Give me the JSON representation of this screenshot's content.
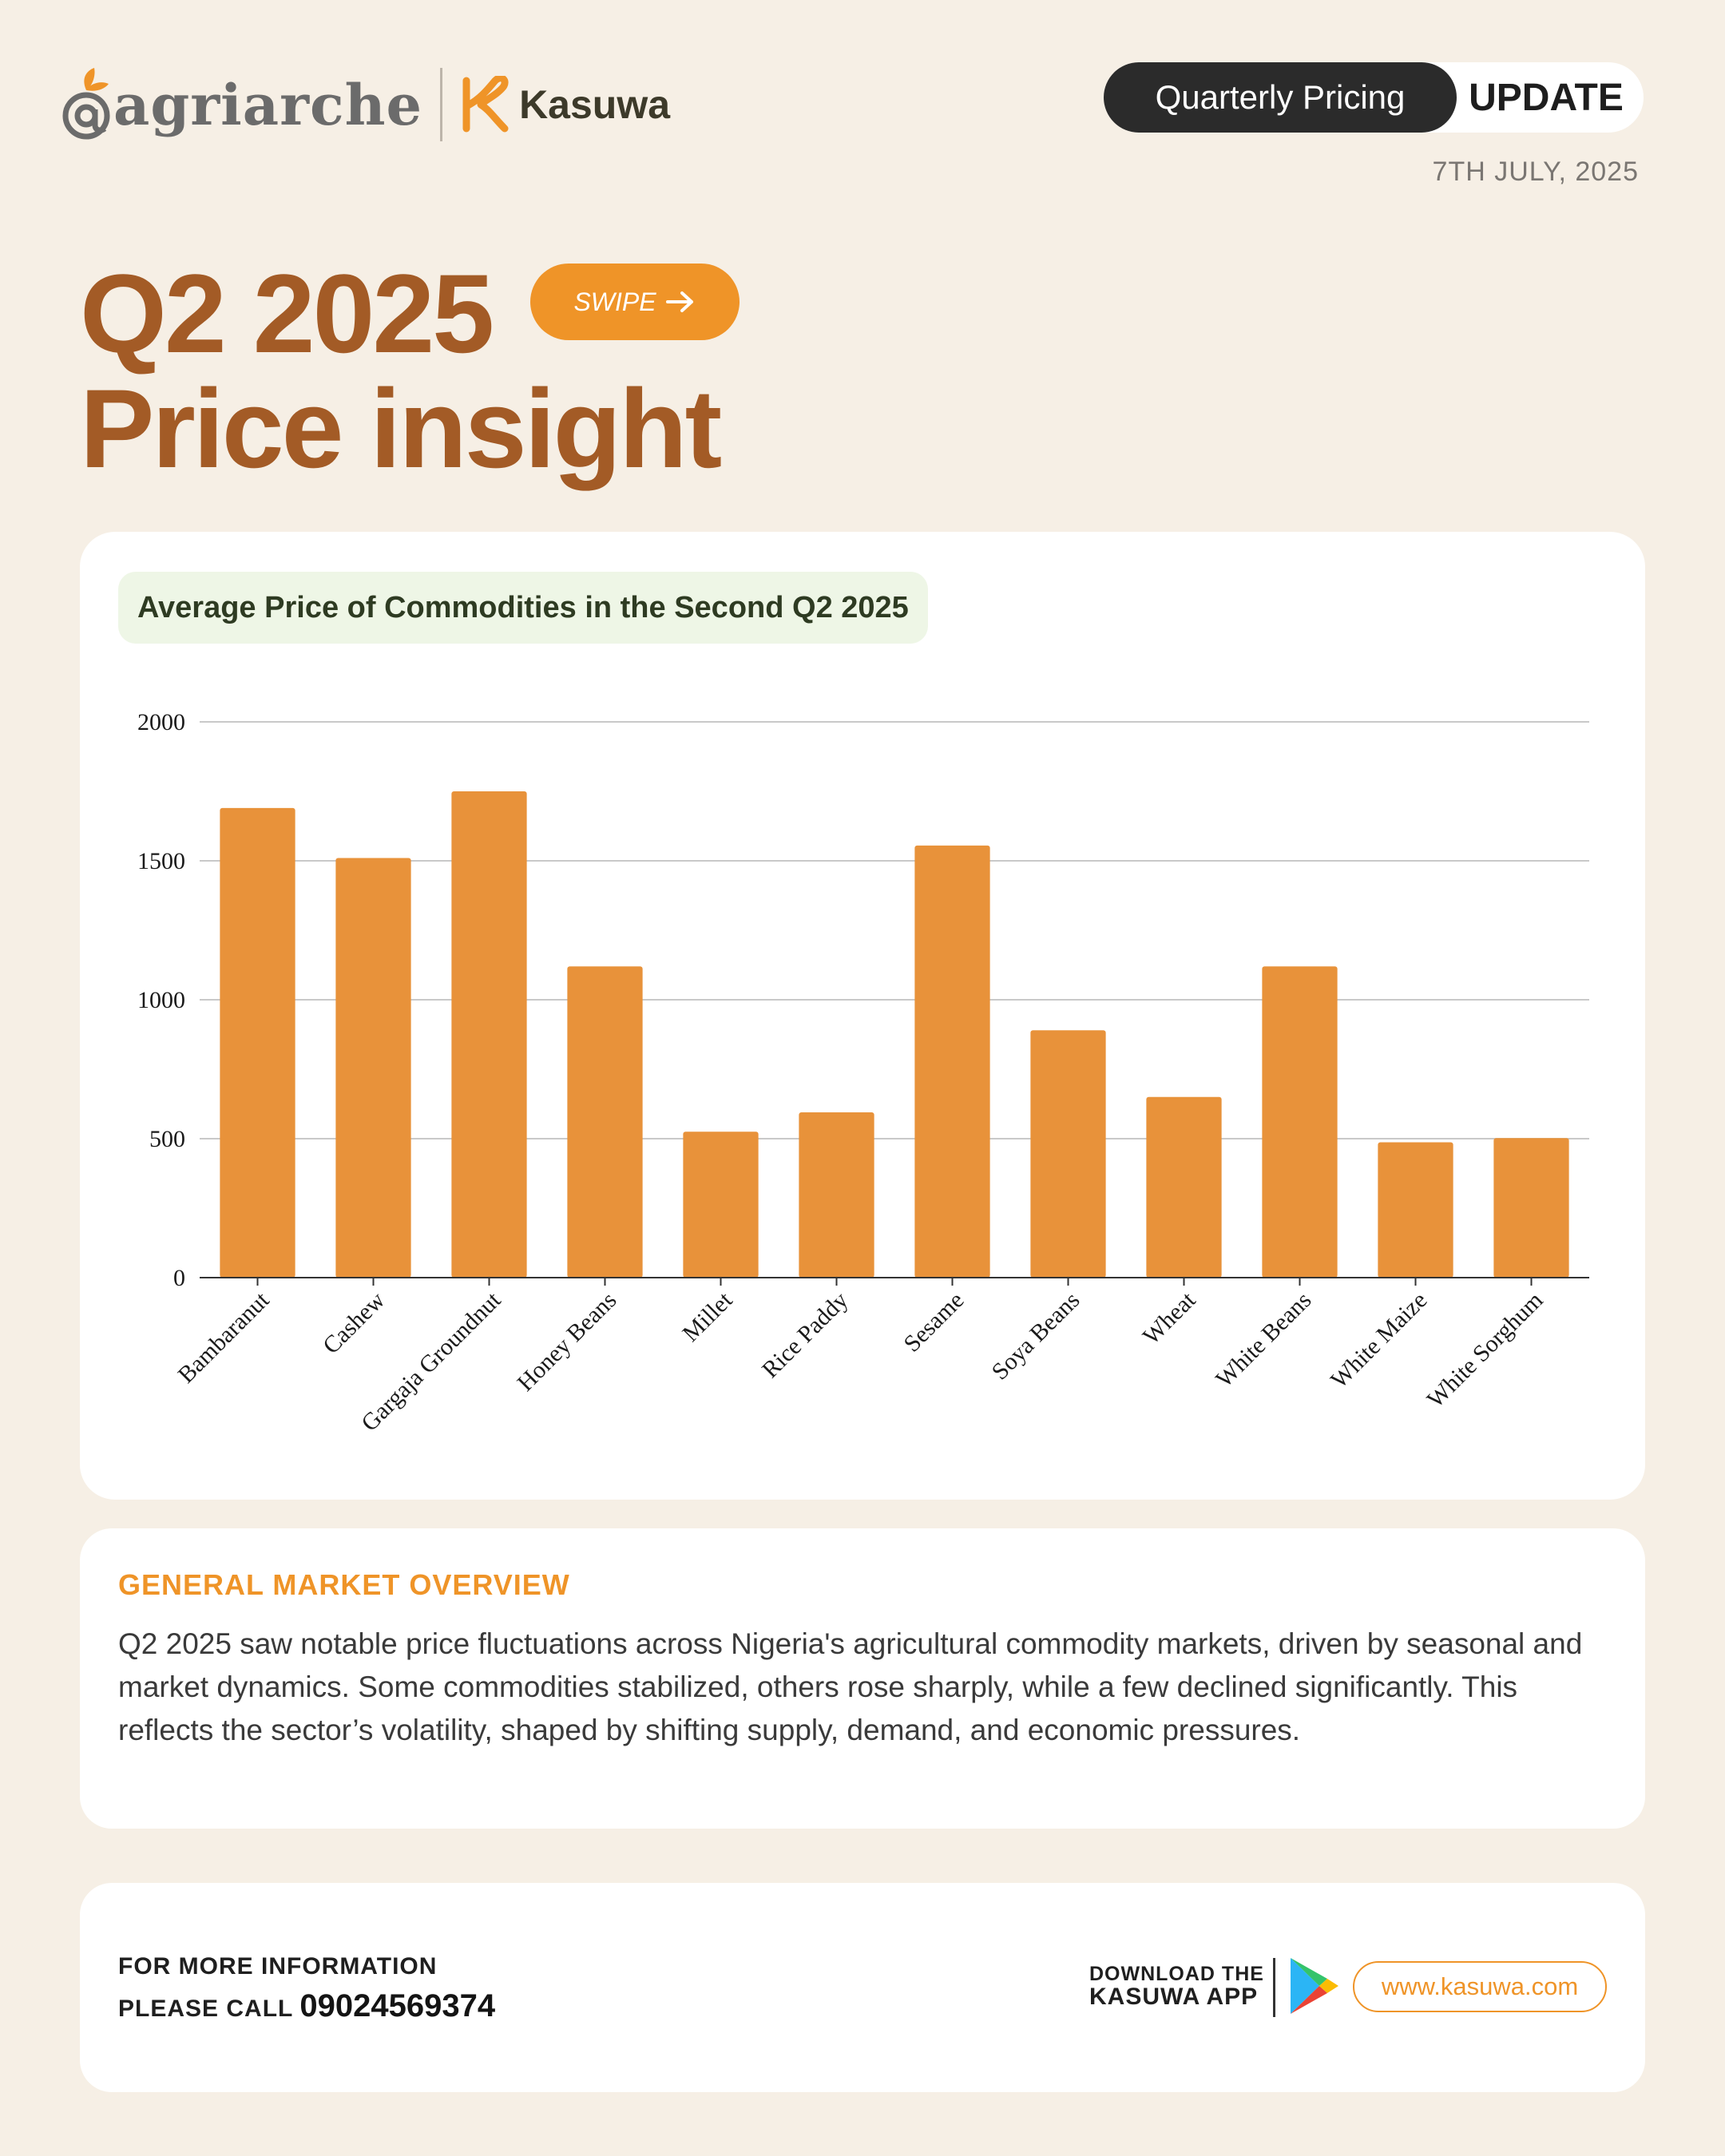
{
  "header": {
    "brand_agri": "agriarche",
    "brand_kasuwa": "Kasuwa",
    "pill_left": "Quarterly Pricing",
    "pill_right": "UPDATE",
    "date": "7TH JULY, 2025"
  },
  "title": {
    "line1": "Q2 2025",
    "line2": "Price insight",
    "swipe_label": "SWIPE"
  },
  "colors": {
    "accent_orange": "#ef9428",
    "title_brown": "#a35b26",
    "bar_fill": "#e8923a",
    "dark_pill": "#2b2b2b",
    "heading_box": "#eef6e6"
  },
  "chart_data": {
    "type": "bar",
    "title": "Average Price of Commodities in the Second Q2 2025",
    "categories": [
      "Bambaranut",
      "Cashew",
      "Gargaja Groundnut",
      "Honey Beans",
      "Millet",
      "Rice Paddy",
      "Sesame",
      "Soya Beans",
      "Wheat",
      "White Beans",
      "White Maize",
      "White Sorghum"
    ],
    "values": [
      1690,
      1510,
      1750,
      1120,
      525,
      595,
      1555,
      890,
      650,
      1120,
      487,
      502
    ],
    "ylim": [
      0,
      2000
    ],
    "yticks": [
      0,
      500,
      1000,
      1500,
      2000
    ],
    "xlabel": "",
    "ylabel": "",
    "grid": true,
    "legend": "none"
  },
  "overview": {
    "heading": "GENERAL MARKET OVERVIEW",
    "text": "Q2 2025 saw notable price fluctuations across Nigeria's agricultural commodity markets, driven by seasonal and market dynamics. Some commodities stabilized, others rose sharply, while a few declined significantly. This reflects the sector’s volatility, shaped by shifting supply, demand, and economic pressures."
  },
  "footer": {
    "info_line1": "FOR MORE INFORMATION",
    "info_line2": "PLEASE CALL",
    "phone": "09024569374",
    "download_line1": "DOWNLOAD THE",
    "download_line2": "KASUWA APP",
    "website": "www.kasuwa.com",
    "store_icon": "google-play-icon"
  }
}
